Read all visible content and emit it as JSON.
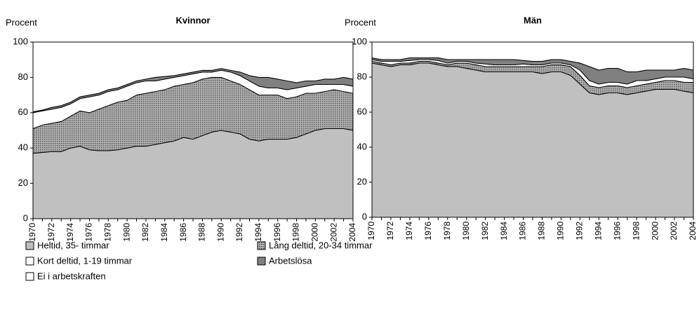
{
  "chart_data": [
    {
      "type": "stacked_area",
      "title": "Kvinnor",
      "y_label": "Procent",
      "categories": [
        "1970",
        null,
        "1972",
        null,
        "1974",
        null,
        "1976",
        null,
        "1978",
        null,
        "1980",
        null,
        "1982",
        null,
        "1984",
        null,
        "1986",
        null,
        "1988",
        null,
        "1990",
        null,
        "1992",
        null,
        "1994",
        null,
        "1996",
        null,
        "1998",
        null,
        "2000",
        null,
        "2002",
        null,
        "2004"
      ],
      "ylim": [
        0,
        100
      ],
      "yticks": [
        0,
        20,
        40,
        60,
        80,
        100
      ],
      "series": [
        {
          "name": "Heltid, 35- timmar",
          "color": "#c0c0c0",
          "values": [
            37,
            37.5,
            38,
            38,
            40,
            41,
            39,
            38.5,
            38.5,
            39,
            40,
            41,
            41,
            42,
            43,
            44,
            46,
            45,
            47,
            49,
            50,
            49,
            48,
            45,
            44,
            45,
            45,
            45,
            46,
            48,
            50,
            51,
            51,
            51,
            50
          ]
        },
        {
          "name": "Lång deltid, 20-34 timmar",
          "color": "#8c8c8c",
          "pattern": "dots",
          "values": [
            14,
            15.5,
            16,
            17,
            18,
            20,
            21,
            23.5,
            25.5,
            27,
            27,
            29,
            30,
            30,
            30,
            31,
            30,
            32,
            32,
            31,
            30,
            29,
            28,
            28,
            26,
            25,
            25,
            23,
            23,
            23,
            21,
            21,
            22,
            21,
            21
          ]
        },
        {
          "name": "Kort deltid, 1-19 timmar",
          "color": "#ffffff",
          "values": [
            9,
            8,
            8,
            8,
            7,
            7,
            9,
            8,
            8,
            7,
            8,
            7,
            7,
            6,
            6,
            5,
            5,
            5,
            4,
            3,
            4,
            5,
            5,
            5,
            5,
            4,
            4,
            5,
            5,
            4,
            5,
            4,
            3,
            4,
            4
          ]
        },
        {
          "name": "Arbetslösa",
          "color": "#808080",
          "values": [
            0.5,
            0.5,
            1,
            1,
            1,
            1,
            1,
            1,
            1,
            1,
            1,
            1,
            1,
            2,
            1.5,
            1,
            1,
            1,
            1,
            1,
            1,
            1,
            2,
            3,
            5,
            6,
            5,
            5,
            3,
            3,
            2,
            3,
            3,
            4,
            4
          ]
        },
        {
          "name": "Ei i arbetskraften",
          "color": "#ffffff",
          "values": [
            39.5,
            38.5,
            37,
            36,
            34,
            31,
            30,
            29,
            27,
            26,
            24,
            22,
            21,
            20,
            19.5,
            19,
            18,
            17,
            16,
            16,
            15,
            16,
            17,
            19,
            20,
            20,
            21,
            22,
            23,
            22,
            22,
            21,
            21,
            20,
            21
          ]
        }
      ]
    },
    {
      "type": "stacked_area",
      "title": "Män",
      "y_label": "Procent",
      "categories": [
        "1970",
        null,
        "1972",
        null,
        "1974",
        null,
        "1976",
        null,
        "1978",
        null,
        "1980",
        null,
        "1982",
        null,
        "1984",
        null,
        "1986",
        null,
        "1988",
        null,
        "1990",
        null,
        "1992",
        null,
        "1994",
        null,
        "1996",
        null,
        "1998",
        null,
        "2000",
        null,
        "2002",
        null,
        "2004"
      ],
      "ylim": [
        0,
        100
      ],
      "yticks": [
        0,
        20,
        40,
        60,
        80,
        100
      ],
      "series": [
        {
          "color": "#c0c0c0",
          "values": [
            88,
            87,
            86,
            87,
            87,
            88,
            88,
            87,
            86,
            86,
            85,
            84,
            83,
            83,
            83,
            83,
            83,
            83,
            82,
            83,
            83,
            81,
            76,
            71,
            70,
            71,
            71,
            70,
            71,
            72,
            73,
            73,
            73,
            72,
            71
          ]
        },
        {
          "color": "#8c8c8c",
          "pattern": "dots",
          "values": [
            1,
            1,
            1,
            1,
            1,
            1,
            1,
            1,
            1,
            2,
            3,
            3,
            3,
            3,
            3,
            3,
            3,
            3,
            4,
            4,
            4,
            5,
            5,
            4,
            4,
            4,
            4,
            4,
            4,
            4,
            4,
            5,
            5,
            5,
            6
          ]
        },
        {
          "color": "#ffffff",
          "values": [
            1,
            1,
            2,
            1,
            1.5,
            1,
            1,
            1.5,
            1,
            1,
            1,
            1,
            1.5,
            1,
            1,
            1,
            1.5,
            1,
            1,
            1,
            1,
            1,
            3,
            3,
            2,
            2,
            2,
            2,
            3,
            2,
            2,
            2,
            2,
            3,
            2
          ]
        },
        {
          "color": "#808080",
          "values": [
            1,
            1,
            1,
            1,
            1.5,
            1,
            1,
            1.5,
            2,
            1,
            1,
            2,
            2.5,
            3,
            3,
            3,
            2,
            2,
            2,
            2,
            2,
            2,
            4,
            8,
            8,
            8,
            8,
            7,
            5,
            6,
            5,
            4,
            4,
            5,
            5
          ]
        },
        {
          "color": "#ffffff",
          "values": [
            9,
            10,
            10,
            10,
            9,
            9,
            9,
            9,
            10,
            10,
            10,
            10,
            10,
            10,
            10,
            10,
            10.5,
            11,
            11,
            10,
            10,
            11,
            12,
            14,
            16,
            15,
            15,
            17,
            17,
            16,
            16,
            16,
            16,
            15,
            16
          ]
        }
      ]
    }
  ]
}
